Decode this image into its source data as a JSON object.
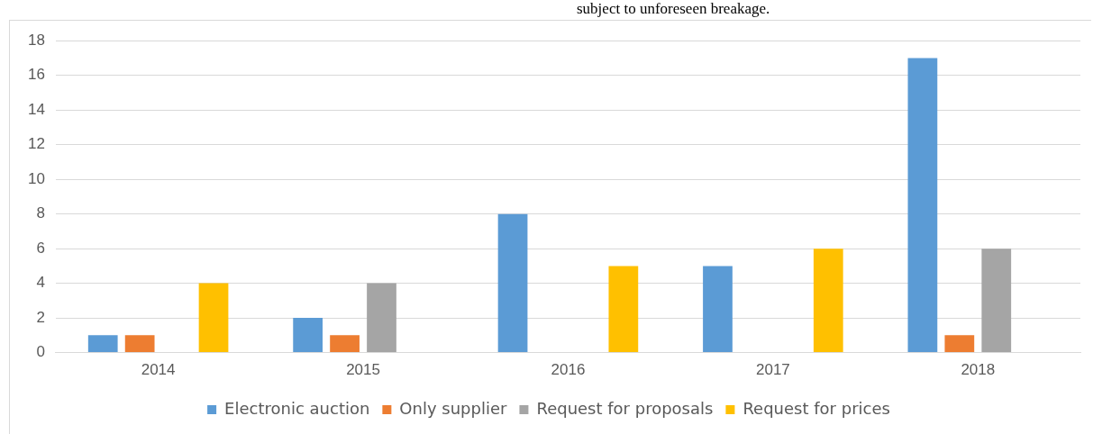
{
  "chart_data": {
    "type": "bar",
    "annotations": [
      "subject to unforeseen breakage."
    ],
    "categories": [
      "2014",
      "2015",
      "2016",
      "2017",
      "2018"
    ],
    "series": [
      {
        "name": "Electronic auction",
        "color": "#5b9bd5",
        "values": [
          1,
          2,
          8,
          5,
          17
        ]
      },
      {
        "name": "Only supplier",
        "color": "#ed7d31",
        "values": [
          1,
          1,
          0,
          0,
          1
        ]
      },
      {
        "name": "Request for proposals",
        "color": "#a5a5a5",
        "values": [
          0,
          4,
          0,
          0,
          6
        ]
      },
      {
        "name": "Request for prices",
        "color": "#ffc000",
        "values": [
          4,
          0,
          5,
          6,
          0
        ]
      }
    ],
    "ylim": [
      0,
      18
    ],
    "yticks": [
      0,
      2,
      4,
      6,
      8,
      10,
      12,
      14,
      16,
      18
    ],
    "grid": "y",
    "legend": "bottom"
  }
}
